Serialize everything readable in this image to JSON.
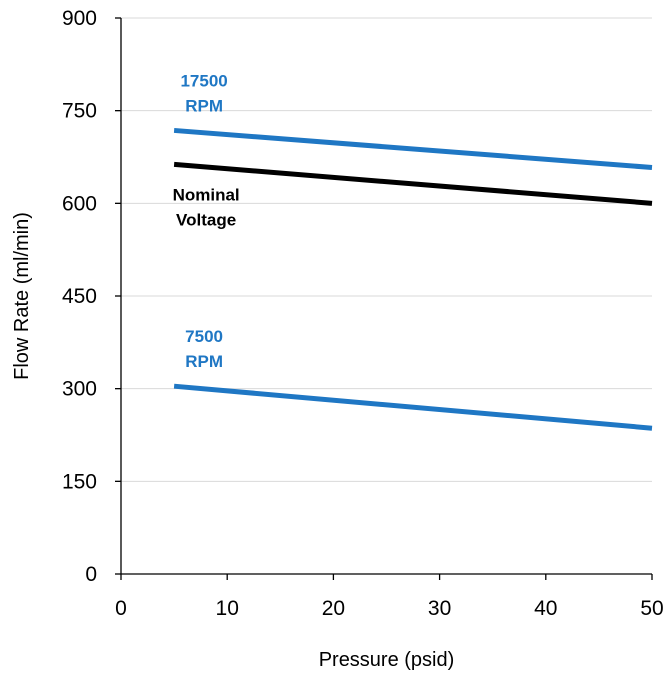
{
  "chart_data": {
    "type": "line",
    "title": "",
    "xlabel": "Pressure (psid)",
    "ylabel": "Flow Rate (ml/min)",
    "xlim": [
      0,
      50
    ],
    "ylim": [
      0,
      900
    ],
    "xticks": [
      0,
      10,
      20,
      30,
      40,
      50
    ],
    "yticks": [
      0,
      150,
      300,
      450,
      600,
      750,
      900
    ],
    "grid": "horizontal",
    "legend": "none",
    "series": [
      {
        "label_lines": [
          "17500",
          "RPM"
        ],
        "color": "#1F77C4",
        "x": [
          5,
          50
        ],
        "y": [
          718,
          658
        ]
      },
      {
        "label_lines": [
          "Nominal",
          "Voltage"
        ],
        "color": "#000000",
        "x": [
          5,
          50
        ],
        "y": [
          663,
          600
        ]
      },
      {
        "label_lines": [
          "7500",
          "RPM"
        ],
        "color": "#1F77C4",
        "x": [
          5,
          50
        ],
        "y": [
          304,
          236
        ]
      }
    ]
  }
}
